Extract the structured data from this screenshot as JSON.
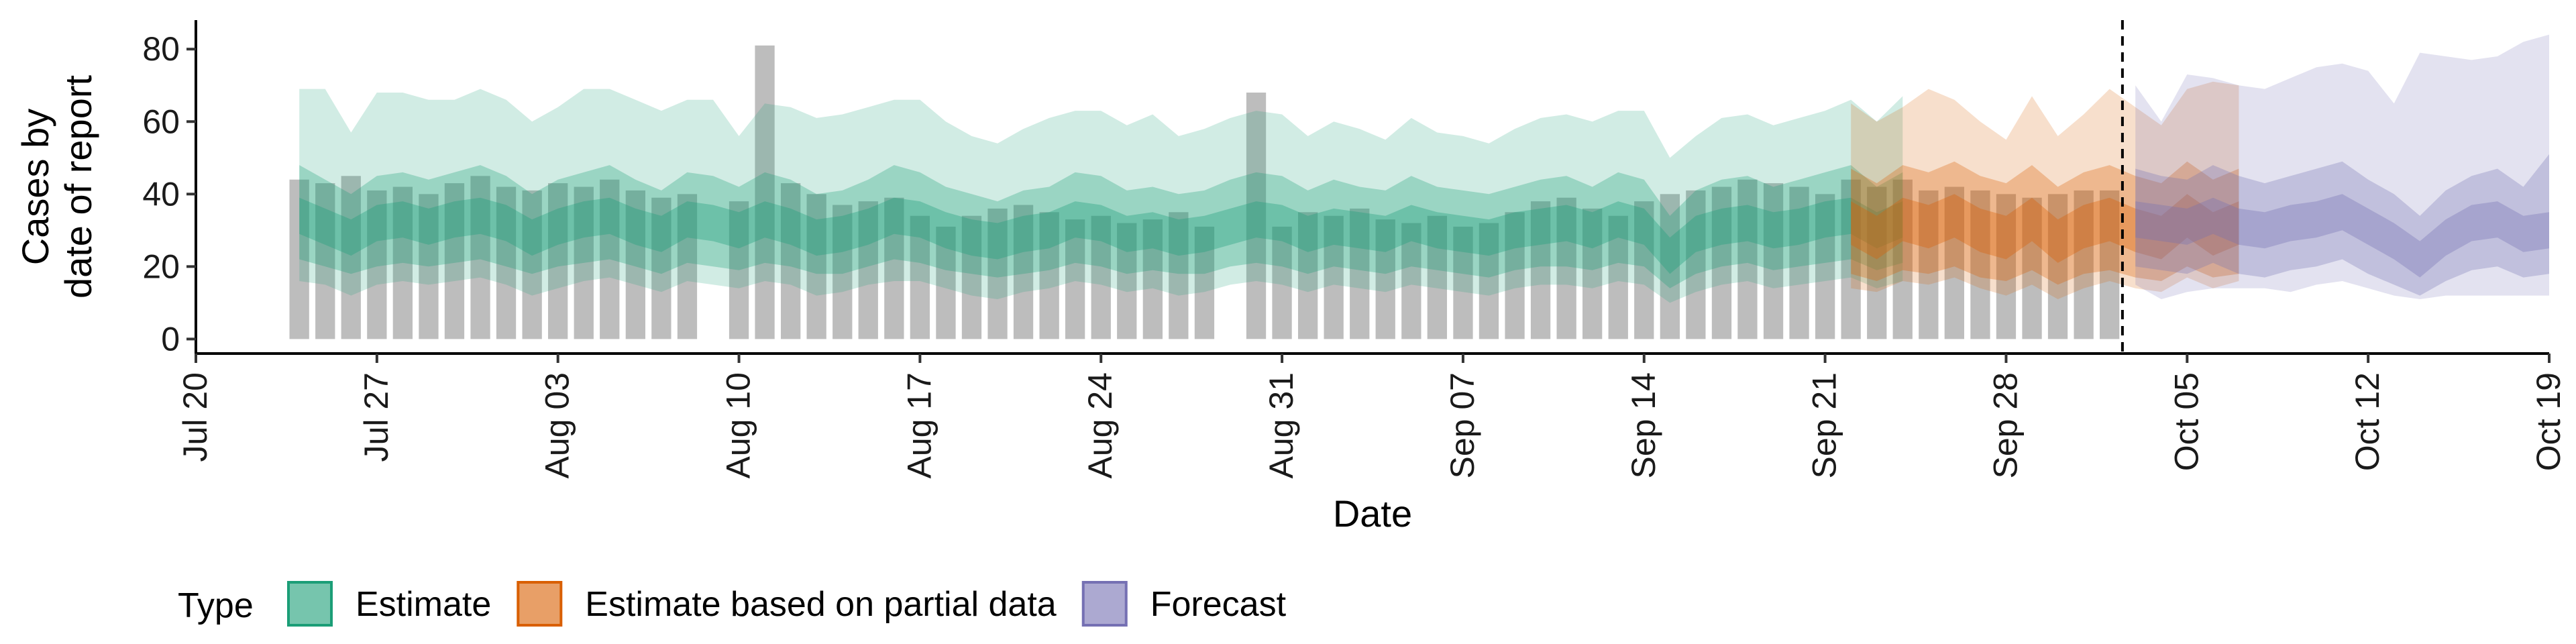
{
  "chart_data": {
    "type": "area",
    "title": "",
    "xlabel": "Date",
    "ylabel_line1": "Cases by",
    "ylabel_line2": "date of report",
    "x_start": "2020-07-20",
    "x_end": "2020-10-19",
    "ylim": [
      -4,
      88
    ],
    "y_ticks": [
      0,
      20,
      40,
      60,
      80
    ],
    "x_ticks": [
      {
        "date": "2020-07-20",
        "label": "Jul 20"
      },
      {
        "date": "2020-07-27",
        "label": "Jul 27"
      },
      {
        "date": "2020-08-03",
        "label": "Aug 03"
      },
      {
        "date": "2020-08-10",
        "label": "Aug 10"
      },
      {
        "date": "2020-08-17",
        "label": "Aug 17"
      },
      {
        "date": "2020-08-24",
        "label": "Aug 24"
      },
      {
        "date": "2020-08-31",
        "label": "Aug 31"
      },
      {
        "date": "2020-09-07",
        "label": "Sep 07"
      },
      {
        "date": "2020-09-14",
        "label": "Sep 14"
      },
      {
        "date": "2020-09-21",
        "label": "Sep 21"
      },
      {
        "date": "2020-09-28",
        "label": "Sep 28"
      },
      {
        "date": "2020-10-05",
        "label": "Oct 05"
      },
      {
        "date": "2020-10-12",
        "label": "Oct 12"
      },
      {
        "date": "2020-10-19",
        "label": "Oct 19"
      }
    ],
    "reported_cases": {
      "start": "2020-07-24",
      "values": [
        44,
        43,
        45,
        41,
        42,
        40,
        43,
        45,
        42,
        41,
        43,
        42,
        44,
        41,
        39,
        40,
        null,
        38,
        81,
        43,
        40,
        37,
        38,
        39,
        34,
        31,
        34,
        36,
        37,
        35,
        33,
        34,
        32,
        33,
        35,
        31,
        null,
        68,
        31,
        35,
        34,
        36,
        33,
        32,
        34,
        31,
        32,
        35,
        38,
        39,
        36,
        34,
        38,
        40,
        41,
        42,
        44,
        43,
        42,
        40,
        44,
        42,
        44,
        41,
        42,
        41,
        40,
        39,
        40,
        41,
        41
      ]
    },
    "vline_date": "2020-10-02",
    "legend": {
      "title": "Type",
      "items": [
        {
          "label": "Estimate",
          "color": "#1b9e77"
        },
        {
          "label": "Estimate based on partial data",
          "color": "#d95f02"
        },
        {
          "label": "Forecast",
          "color": "#7570b3"
        }
      ]
    },
    "series": [
      {
        "name": "Estimate",
        "color": "#1b9e77",
        "start": "2020-07-24",
        "median": [
          34,
          31,
          28,
          32,
          33,
          31,
          33,
          34,
          32,
          28,
          31,
          33,
          34,
          31,
          29,
          33,
          32,
          30,
          33,
          31,
          28,
          29,
          31,
          34,
          33,
          30,
          28,
          27,
          29,
          30,
          33,
          32,
          29,
          30,
          28,
          29,
          31,
          33,
          32,
          29,
          31,
          30,
          29,
          32,
          30,
          29,
          28,
          30,
          31,
          32,
          30,
          33,
          31,
          23,
          29,
          31,
          32,
          30,
          31,
          33,
          34,
          30,
          33
        ],
        "inner_low": [
          29,
          26,
          23,
          27,
          28,
          26,
          28,
          29,
          27,
          23,
          26,
          28,
          29,
          26,
          24,
          28,
          27,
          25,
          28,
          26,
          23,
          24,
          26,
          29,
          28,
          25,
          23,
          22,
          24,
          25,
          28,
          27,
          24,
          25,
          23,
          24,
          26,
          28,
          27,
          24,
          26,
          25,
          24,
          27,
          25,
          24,
          23,
          25,
          26,
          27,
          25,
          28,
          26,
          18,
          24,
          26,
          27,
          25,
          26,
          28,
          29,
          25,
          28
        ],
        "inner_high": [
          39,
          36,
          33,
          37,
          38,
          36,
          38,
          39,
          37,
          33,
          36,
          38,
          39,
          36,
          34,
          38,
          37,
          35,
          38,
          36,
          33,
          34,
          36,
          39,
          38,
          35,
          33,
          32,
          34,
          35,
          38,
          37,
          34,
          35,
          33,
          34,
          36,
          38,
          37,
          34,
          36,
          35,
          34,
          37,
          35,
          34,
          33,
          35,
          36,
          37,
          35,
          38,
          36,
          28,
          34,
          36,
          37,
          35,
          36,
          38,
          39,
          35,
          38
        ],
        "mid_low": [
          22,
          20,
          18,
          20,
          21,
          20,
          21,
          22,
          20,
          18,
          20,
          21,
          22,
          20,
          18,
          21,
          20,
          19,
          21,
          20,
          18,
          18,
          20,
          22,
          21,
          19,
          18,
          17,
          18,
          19,
          21,
          20,
          18,
          19,
          18,
          18,
          20,
          21,
          20,
          18,
          20,
          19,
          18,
          20,
          19,
          18,
          17,
          19,
          20,
          20,
          19,
          21,
          20,
          14,
          18,
          20,
          21,
          19,
          20,
          21,
          22,
          19,
          21
        ],
        "mid_high": [
          48,
          44,
          40,
          45,
          46,
          44,
          46,
          48,
          45,
          40,
          44,
          46,
          48,
          44,
          41,
          46,
          45,
          42,
          46,
          44,
          40,
          41,
          44,
          48,
          46,
          42,
          40,
          38,
          41,
          42,
          46,
          45,
          41,
          42,
          40,
          41,
          44,
          46,
          45,
          41,
          44,
          42,
          41,
          45,
          42,
          41,
          40,
          42,
          44,
          45,
          42,
          46,
          44,
          34,
          41,
          44,
          45,
          42,
          44,
          46,
          48,
          42,
          46
        ],
        "outer_low": [
          16,
          15,
          12,
          15,
          16,
          15,
          16,
          17,
          15,
          12,
          14,
          16,
          17,
          15,
          13,
          16,
          15,
          14,
          16,
          15,
          12,
          13,
          15,
          16,
          16,
          14,
          12,
          11,
          13,
          14,
          16,
          15,
          13,
          14,
          12,
          13,
          15,
          16,
          15,
          13,
          15,
          14,
          13,
          15,
          14,
          13,
          12,
          14,
          15,
          15,
          14,
          16,
          15,
          10,
          13,
          15,
          16,
          14,
          15,
          16,
          17,
          14,
          16
        ],
        "outer_high": [
          69,
          69,
          57,
          68,
          68,
          66,
          66,
          69,
          66,
          60,
          64,
          69,
          69,
          66,
          63,
          66,
          66,
          56,
          65,
          64,
          61,
          62,
          64,
          66,
          66,
          60,
          56,
          54,
          58,
          61,
          63,
          63,
          59,
          62,
          56,
          58,
          61,
          63,
          62,
          56,
          60,
          58,
          55,
          61,
          57,
          56,
          54,
          58,
          61,
          62,
          60,
          63,
          63,
          50,
          56,
          61,
          62,
          59,
          61,
          63,
          66,
          60,
          67
        ]
      },
      {
        "name": "Estimate based on partial data",
        "color": "#d95f02",
        "start": "2020-09-22",
        "median": [
          32,
          28,
          33,
          31,
          34,
          30,
          28,
          33,
          27,
          31,
          33,
          30,
          28,
          34,
          29,
          32
        ],
        "inner_low": [
          26,
          22,
          27,
          25,
          28,
          24,
          22,
          27,
          21,
          25,
          27,
          24,
          22,
          28,
          23,
          26
        ],
        "inner_high": [
          38,
          34,
          39,
          37,
          40,
          36,
          34,
          39,
          33,
          37,
          39,
          36,
          34,
          40,
          35,
          38
        ],
        "mid_low": [
          18,
          16,
          19,
          18,
          20,
          17,
          16,
          19,
          15,
          18,
          19,
          17,
          16,
          20,
          17,
          18
        ],
        "mid_high": [
          47,
          43,
          48,
          46,
          49,
          45,
          43,
          48,
          42,
          46,
          48,
          45,
          43,
          49,
          44,
          47
        ],
        "outer_low": [
          14,
          13,
          16,
          15,
          17,
          14,
          12,
          15,
          11,
          14,
          16,
          14,
          13,
          17,
          14,
          16
        ],
        "outer_high": [
          65,
          60,
          64,
          69,
          66,
          60,
          55,
          67,
          56,
          62,
          69,
          64,
          59,
          69,
          71,
          70
        ]
      },
      {
        "name": "Forecast",
        "color": "#7570b3",
        "start": "2020-10-03",
        "median": [
          33,
          32,
          31,
          34,
          31,
          30,
          32,
          33,
          35,
          31,
          27,
          22,
          28,
          32,
          33,
          29,
          30
        ],
        "inner_low": [
          28,
          27,
          26,
          29,
          26,
          25,
          27,
          28,
          30,
          26,
          22,
          17,
          23,
          27,
          28,
          24,
          25
        ],
        "inner_high": [
          38,
          37,
          36,
          39,
          36,
          35,
          37,
          38,
          40,
          36,
          32,
          27,
          33,
          37,
          38,
          34,
          35
        ],
        "mid_low": [
          20,
          19,
          18,
          21,
          18,
          17,
          19,
          20,
          22,
          18,
          15,
          12,
          16,
          19,
          20,
          17,
          18
        ],
        "mid_high": [
          47,
          45,
          44,
          48,
          45,
          43,
          45,
          47,
          49,
          44,
          40,
          34,
          41,
          45,
          47,
          42,
          51
        ],
        "outer_low": [
          15,
          11,
          13,
          14,
          14,
          14,
          13,
          15,
          16,
          14,
          12,
          11,
          12,
          12,
          12,
          12,
          12
        ],
        "outer_high": [
          70,
          60,
          73,
          72,
          70,
          69,
          72,
          75,
          76,
          74,
          65,
          79,
          78,
          77,
          78,
          82,
          84
        ]
      }
    ]
  }
}
